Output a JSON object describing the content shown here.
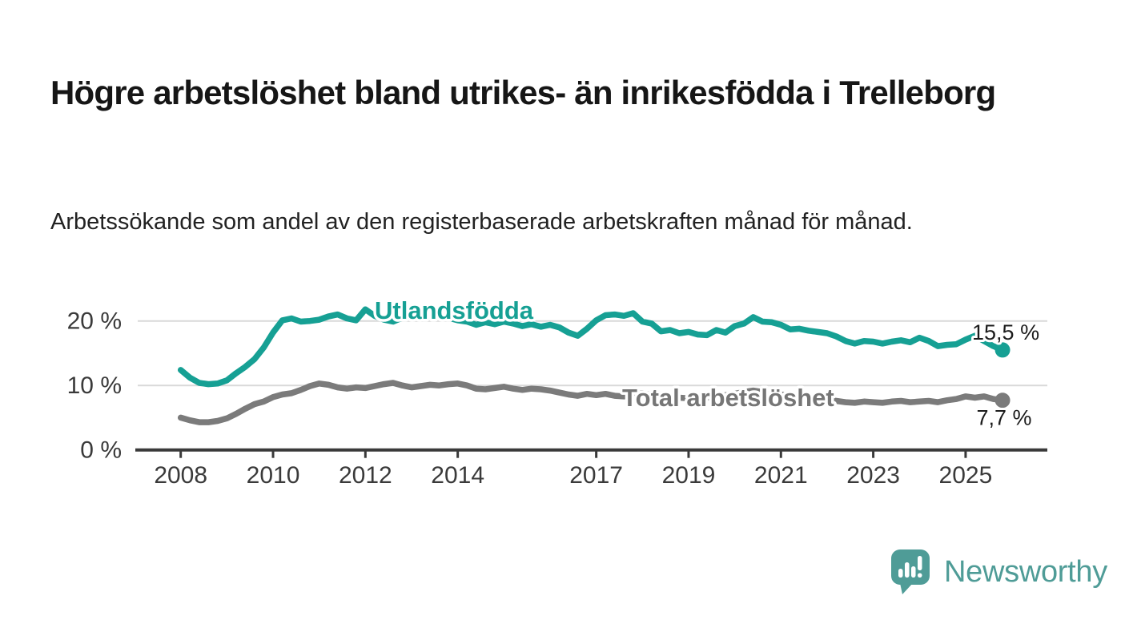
{
  "header": {
    "title": "Högre arbetslöshet bland utrikes- än inrikesfödda i Trelleborg",
    "subtitle": "Arbetssökande som andel av den registerbaserade arbetskraften månad för månad."
  },
  "chart_data": {
    "type": "line",
    "title": "Högre arbetslöshet bland utrikes- än inrikesfödda i Trelleborg",
    "subtitle": "Arbetssökande som andel av den registerbaserade arbetskraften månad för månad.",
    "xlabel": "",
    "ylabel": "",
    "grid": "horizontal",
    "legend_position": "inline-labels",
    "xlim": [
      2007.1,
      2026.8
    ],
    "ylim": [
      0,
      27
    ],
    "x_axis": {
      "tick_years": [
        2008,
        2010,
        2012,
        2014,
        2017,
        2019,
        2021,
        2023,
        2025
      ],
      "tick_labels": [
        "2008",
        "2010",
        "2012",
        "2014",
        "2017",
        "2019",
        "2021",
        "2023",
        "2025"
      ]
    },
    "y_axis": {
      "tick_values": [
        0,
        10,
        20
      ],
      "tick_labels": [
        "0 %",
        "10 %",
        "20 %"
      ]
    },
    "series": [
      {
        "name": "Utlandsfödda",
        "color": "#16A094",
        "end_label": "15,5 %",
        "end_value": 15.5,
        "points": [
          [
            2008.0,
            12.4
          ],
          [
            2008.2,
            11.2
          ],
          [
            2008.4,
            10.4
          ],
          [
            2008.6,
            10.2
          ],
          [
            2008.8,
            10.3
          ],
          [
            2009.0,
            10.8
          ],
          [
            2009.2,
            11.9
          ],
          [
            2009.4,
            12.9
          ],
          [
            2009.6,
            14.1
          ],
          [
            2009.8,
            15.9
          ],
          [
            2010.0,
            18.2
          ],
          [
            2010.2,
            20.1
          ],
          [
            2010.4,
            20.4
          ],
          [
            2010.6,
            19.9
          ],
          [
            2010.8,
            20.0
          ],
          [
            2011.0,
            20.2
          ],
          [
            2011.2,
            20.7
          ],
          [
            2011.4,
            21.0
          ],
          [
            2011.6,
            20.4
          ],
          [
            2011.8,
            20.1
          ],
          [
            2012.0,
            21.8
          ],
          [
            2012.2,
            20.8
          ],
          [
            2012.4,
            20.2
          ],
          [
            2012.6,
            19.9
          ],
          [
            2012.8,
            20.5
          ],
          [
            2013.0,
            20.8
          ],
          [
            2013.2,
            20.4
          ],
          [
            2013.4,
            20.6
          ],
          [
            2013.6,
            20.9
          ],
          [
            2013.8,
            20.5
          ],
          [
            2014.0,
            20.1
          ],
          [
            2014.2,
            19.9
          ],
          [
            2014.4,
            19.4
          ],
          [
            2014.6,
            19.8
          ],
          [
            2014.8,
            19.5
          ],
          [
            2015.0,
            19.9
          ],
          [
            2015.2,
            19.6
          ],
          [
            2015.4,
            19.2
          ],
          [
            2015.6,
            19.5
          ],
          [
            2015.8,
            19.1
          ],
          [
            2016.0,
            19.4
          ],
          [
            2016.2,
            19.0
          ],
          [
            2016.4,
            18.2
          ],
          [
            2016.6,
            17.7
          ],
          [
            2016.8,
            18.8
          ],
          [
            2017.0,
            20.1
          ],
          [
            2017.2,
            20.9
          ],
          [
            2017.4,
            21.0
          ],
          [
            2017.6,
            20.8
          ],
          [
            2017.8,
            21.2
          ],
          [
            2018.0,
            19.9
          ],
          [
            2018.2,
            19.6
          ],
          [
            2018.4,
            18.4
          ],
          [
            2018.6,
            18.6
          ],
          [
            2018.8,
            18.1
          ],
          [
            2019.0,
            18.3
          ],
          [
            2019.2,
            17.9
          ],
          [
            2019.4,
            17.8
          ],
          [
            2019.6,
            18.6
          ],
          [
            2019.8,
            18.2
          ],
          [
            2020.0,
            19.2
          ],
          [
            2020.2,
            19.6
          ],
          [
            2020.4,
            20.6
          ],
          [
            2020.6,
            19.9
          ],
          [
            2020.8,
            19.8
          ],
          [
            2021.0,
            19.4
          ],
          [
            2021.2,
            18.7
          ],
          [
            2021.4,
            18.8
          ],
          [
            2021.6,
            18.5
          ],
          [
            2021.8,
            18.3
          ],
          [
            2022.0,
            18.1
          ],
          [
            2022.2,
            17.6
          ],
          [
            2022.4,
            16.9
          ],
          [
            2022.6,
            16.5
          ],
          [
            2022.8,
            16.9
          ],
          [
            2023.0,
            16.8
          ],
          [
            2023.2,
            16.5
          ],
          [
            2023.4,
            16.8
          ],
          [
            2023.6,
            17.0
          ],
          [
            2023.8,
            16.7
          ],
          [
            2024.0,
            17.4
          ],
          [
            2024.2,
            16.9
          ],
          [
            2024.4,
            16.1
          ],
          [
            2024.6,
            16.3
          ],
          [
            2024.8,
            16.4
          ],
          [
            2025.0,
            17.1
          ],
          [
            2025.2,
            17.7
          ],
          [
            2025.4,
            16.9
          ],
          [
            2025.6,
            16.1
          ],
          [
            2025.8,
            15.5
          ]
        ]
      },
      {
        "name": "Total arbetslöshet",
        "color": "#7B7B7B",
        "label_color": "#767676",
        "end_label": "7,7 %",
        "end_value": 7.7,
        "points": [
          [
            2008.0,
            5.0
          ],
          [
            2008.2,
            4.6
          ],
          [
            2008.4,
            4.3
          ],
          [
            2008.6,
            4.3
          ],
          [
            2008.8,
            4.5
          ],
          [
            2009.0,
            4.9
          ],
          [
            2009.2,
            5.6
          ],
          [
            2009.4,
            6.4
          ],
          [
            2009.6,
            7.1
          ],
          [
            2009.8,
            7.5
          ],
          [
            2010.0,
            8.2
          ],
          [
            2010.2,
            8.6
          ],
          [
            2010.4,
            8.8
          ],
          [
            2010.6,
            9.3
          ],
          [
            2010.8,
            9.9
          ],
          [
            2011.0,
            10.3
          ],
          [
            2011.2,
            10.1
          ],
          [
            2011.4,
            9.7
          ],
          [
            2011.6,
            9.5
          ],
          [
            2011.8,
            9.7
          ],
          [
            2012.0,
            9.6
          ],
          [
            2012.2,
            9.9
          ],
          [
            2012.4,
            10.2
          ],
          [
            2012.6,
            10.4
          ],
          [
            2012.8,
            10.0
          ],
          [
            2013.0,
            9.7
          ],
          [
            2013.2,
            9.9
          ],
          [
            2013.4,
            10.1
          ],
          [
            2013.6,
            10.0
          ],
          [
            2013.8,
            10.2
          ],
          [
            2014.0,
            10.3
          ],
          [
            2014.2,
            10.0
          ],
          [
            2014.4,
            9.5
          ],
          [
            2014.6,
            9.4
          ],
          [
            2014.8,
            9.6
          ],
          [
            2015.0,
            9.8
          ],
          [
            2015.2,
            9.5
          ],
          [
            2015.4,
            9.3
          ],
          [
            2015.6,
            9.5
          ],
          [
            2015.8,
            9.4
          ],
          [
            2016.0,
            9.2
          ],
          [
            2016.2,
            8.9
          ],
          [
            2016.4,
            8.6
          ],
          [
            2016.6,
            8.4
          ],
          [
            2016.8,
            8.7
          ],
          [
            2017.0,
            8.5
          ],
          [
            2017.2,
            8.7
          ],
          [
            2017.4,
            8.4
          ],
          [
            2017.6,
            8.3
          ],
          [
            2017.8,
            8.6
          ],
          [
            2018.0,
            8.8
          ],
          [
            2018.2,
            8.5
          ],
          [
            2018.4,
            8.6
          ],
          [
            2018.6,
            8.3
          ],
          [
            2018.8,
            8.1
          ],
          [
            2019.0,
            8.0
          ],
          [
            2019.2,
            8.3
          ],
          [
            2019.4,
            8.1
          ],
          [
            2019.6,
            8.3
          ],
          [
            2019.8,
            8.5
          ],
          [
            2020.0,
            8.7
          ],
          [
            2020.2,
            9.0
          ],
          [
            2020.4,
            9.2
          ],
          [
            2020.6,
            9.0
          ],
          [
            2020.8,
            8.8
          ],
          [
            2021.0,
            8.6
          ],
          [
            2021.2,
            8.4
          ],
          [
            2021.4,
            8.2
          ],
          [
            2021.6,
            8.0
          ],
          [
            2021.8,
            7.9
          ],
          [
            2022.0,
            7.8
          ],
          [
            2022.2,
            7.6
          ],
          [
            2022.4,
            7.4
          ],
          [
            2022.6,
            7.3
          ],
          [
            2022.8,
            7.5
          ],
          [
            2023.0,
            7.4
          ],
          [
            2023.2,
            7.3
          ],
          [
            2023.4,
            7.5
          ],
          [
            2023.6,
            7.6
          ],
          [
            2023.8,
            7.4
          ],
          [
            2024.0,
            7.5
          ],
          [
            2024.2,
            7.6
          ],
          [
            2024.4,
            7.4
          ],
          [
            2024.6,
            7.7
          ],
          [
            2024.8,
            7.9
          ],
          [
            2025.0,
            8.3
          ],
          [
            2025.2,
            8.1
          ],
          [
            2025.4,
            8.3
          ],
          [
            2025.6,
            7.9
          ],
          [
            2025.8,
            7.7
          ]
        ]
      }
    ]
  },
  "footer": {
    "brand": "Newsworthy",
    "logo_icon": "newsworthy-speech-bubble-bar-chart-icon"
  },
  "colors": {
    "background": "#ffffff",
    "title_text": "#161616",
    "subtitle_text": "#222222",
    "axis": "#3a3a3a",
    "axis_tick_label": "#3a3a3a",
    "gridline": "#d9d9d9",
    "annotation_text": "#1c1c1c",
    "series_foreign_born": "#16A094",
    "series_total": "#7B7B7B",
    "brand_teal": "#4F9C97"
  }
}
